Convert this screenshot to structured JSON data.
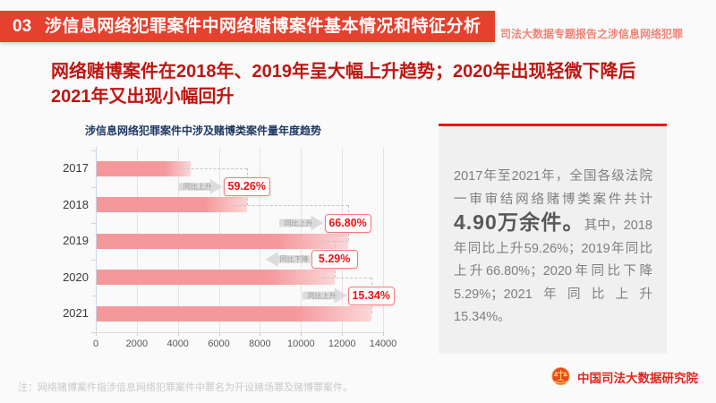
{
  "header": {
    "number": "03",
    "title": "涉信息网络犯罪案件中网络赌博案件基本情况和特征分析",
    "side_note": "司法大数据专题报告之涉信息网络犯罪"
  },
  "headline": {
    "line1": "网络赌博案件在2018年、2019年呈大幅上升趋势；2020年出现轻微下降后",
    "line2": "2021年又出现小幅回升"
  },
  "chart_data": {
    "type": "bar",
    "orientation": "horizontal",
    "title": "涉信息网络犯罪案件中涉及赌博类案件量年度趋势",
    "categories": [
      "2017",
      "2018",
      "2019",
      "2020",
      "2021"
    ],
    "values": [
      4620,
      7360,
      12280,
      11630,
      13420
    ],
    "xlabel": "",
    "ylabel": "",
    "xlim": [
      0,
      14000
    ],
    "xticks": [
      0,
      2000,
      4000,
      6000,
      8000,
      10000,
      12000,
      14000
    ],
    "grid": true,
    "legend": false,
    "annotations": [
      {
        "from": "2017",
        "to": "2018",
        "label": "同比上升",
        "value": "59.26%",
        "direction": "up"
      },
      {
        "from": "2018",
        "to": "2019",
        "label": "同比上升",
        "value": "66.80%",
        "direction": "up"
      },
      {
        "from": "2019",
        "to": "2020",
        "label": "同比下降",
        "value": "5.29%",
        "direction": "down"
      },
      {
        "from": "2020",
        "to": "2021",
        "label": "同比上升",
        "value": "15.34%",
        "direction": "up"
      }
    ]
  },
  "panel": {
    "text_intro": "2017年至2021年，全国各级法院一审审结网络赌博类案件共计",
    "big_number": "4.90万余件。",
    "text_rest": "其中，2018年同比上升59.26%；2019年同比上升66.80%；2020年同比下降5.29%；2021年同比上升15.34%。"
  },
  "footer": {
    "note": "注：网络赌博案件指涉信息网络犯罪案件中罪名为开设赌场罪及赌博罪案件。",
    "logo_text": "中国司法大数据研究院"
  },
  "colors": {
    "header_bar": "#E6402E",
    "header_side_text": "#F08478",
    "headline": "#BE1612",
    "chart_title": "#1F3864",
    "bar_start": "#F5989B",
    "bar_end": "#FBD7D9",
    "percent_red": "#F01111",
    "percent_box_border": "#F37B7B",
    "arrow_gray_bg": "#DCDCDC",
    "arrow_gray_text": "#9B9B9B",
    "panel_bg": "#F0F0F0",
    "panel_line": "#F40B0B",
    "panel_text": "#7F7F7F",
    "panel_big": "#595959",
    "note_text": "#C9C9C9",
    "logo_red": "#E2251C",
    "grid": "#E3E3E5",
    "axis_blue": "#C9D7EC",
    "axis_text": "#595959",
    "year_text": "#3A3A3A",
    "dash": "#C6C6C6"
  }
}
